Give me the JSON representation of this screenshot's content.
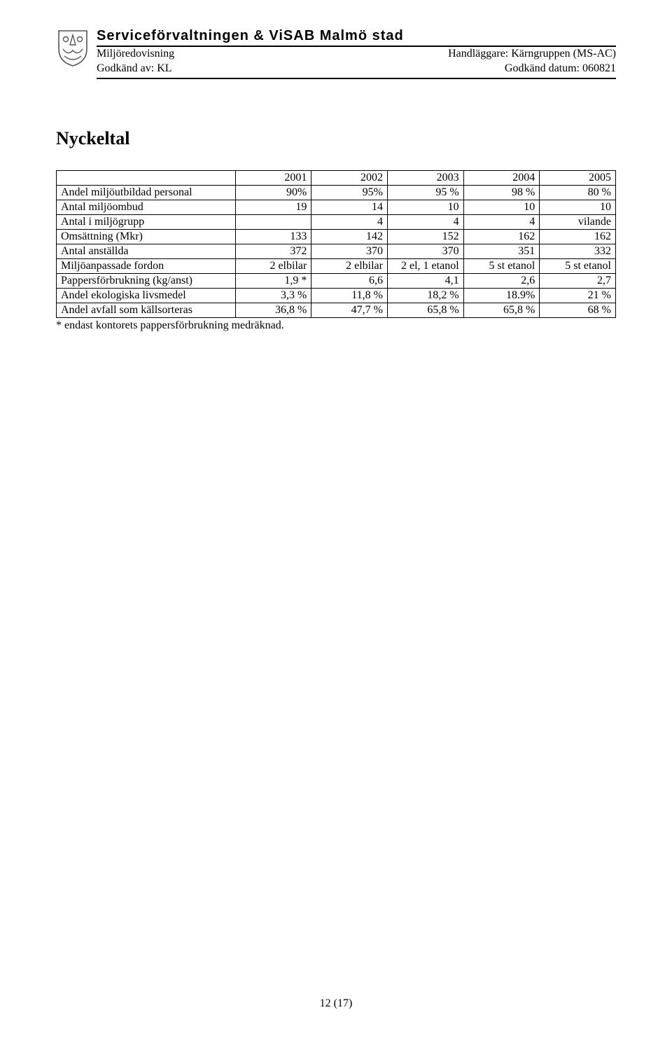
{
  "header": {
    "org_title": "Serviceförvaltningen & ViSAB Malmö stad",
    "left_line1": "Miljöredovisning",
    "right_line1": "Handläggare: Kärngruppen (MS-AC)",
    "left_line2": "Godkänd av: KL",
    "right_line2": "Godkänd datum: 060821"
  },
  "title": "Nyckeltal",
  "table": {
    "columns": [
      "",
      "2001",
      "2002",
      "2003",
      "2004",
      "2005"
    ],
    "rows": [
      [
        "Andel miljöutbildad personal",
        "90%",
        "95%",
        "95 %",
        "98 %",
        "80 %"
      ],
      [
        "Antal miljöombud",
        "19",
        "14",
        "10",
        "10",
        "10"
      ],
      [
        "Antal i miljögrupp",
        "",
        "4",
        "4",
        "4",
        "vilande"
      ],
      [
        "Omsättning (Mkr)",
        "133",
        "142",
        "152",
        "162",
        "162"
      ],
      [
        "Antal anställda",
        "372",
        "370",
        "370",
        "351",
        "332"
      ],
      [
        "Miljöanpassade fordon",
        "2 elbilar",
        "2 elbilar",
        "2 el, 1 etanol",
        "5 st etanol",
        "5 st etanol"
      ],
      [
        "Pappersförbrukning (kg/anst)",
        "1,9 *",
        "6,6",
        "4,1",
        "2,6",
        "2,7"
      ],
      [
        "Andel ekologiska livsmedel",
        "3,3 %",
        "11,8 %",
        "18,2 %",
        "18.9%",
        "21 %"
      ],
      [
        "Andel avfall som källsorteras",
        "36,8 %",
        "47,7 %",
        "65,8 %",
        "65,8 %",
        "68 %"
      ]
    ]
  },
  "footnote": "* endast kontorets pappersförbrukning medräknad.",
  "page_footer": "12 (17)"
}
